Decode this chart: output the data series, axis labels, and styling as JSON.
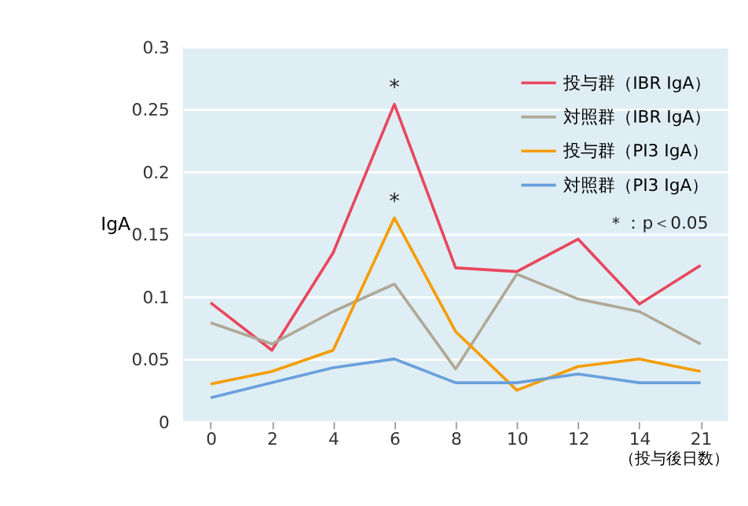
{
  "chart_data": {
    "type": "line",
    "xlabel": "（投与後日数）",
    "ylabel": "IgA",
    "categories": [
      "0",
      "2",
      "4",
      "6",
      "8",
      "10",
      "12",
      "14",
      "21"
    ],
    "series": [
      {
        "name": "投与群（IBR IgA）",
        "color": "#e8475f",
        "values": [
          0.095,
          0.057,
          0.135,
          0.254,
          0.123,
          0.12,
          0.146,
          0.094,
          0.125
        ]
      },
      {
        "name": "対照群（IBR IgA）",
        "color": "#b0a898",
        "values": [
          0.079,
          0.062,
          0.088,
          0.11,
          0.042,
          0.118,
          0.098,
          0.088,
          0.062
        ]
      },
      {
        "name": "投与群（PI3 IgA）",
        "color": "#f59c00",
        "values": [
          0.03,
          0.04,
          0.057,
          0.163,
          0.072,
          0.025,
          0.044,
          0.05,
          0.04
        ]
      },
      {
        "name": "対照群（PI3 IgA）",
        "color": "#6a9fdc",
        "values": [
          0.019,
          0.031,
          0.043,
          0.05,
          0.031,
          0.031,
          0.038,
          0.031,
          0.031
        ]
      }
    ],
    "ylim": [
      0,
      0.3
    ],
    "yticks": [
      0,
      0.05,
      0.1,
      0.15,
      0.2,
      0.25,
      0.3
    ],
    "grid": "y",
    "legend": "top right",
    "marker": "none",
    "line_style": "solid",
    "annotations": [
      {
        "text": "*",
        "x": "6",
        "y": 0.254
      },
      {
        "text": "*",
        "x": "6",
        "y": 0.163
      },
      "＊：p＜0.05"
    ]
  }
}
